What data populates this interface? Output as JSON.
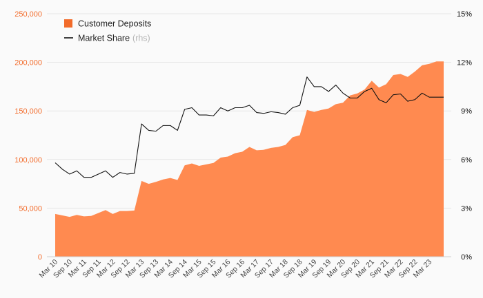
{
  "chart_data": {
    "type": "area+line",
    "title": "",
    "colors": {
      "area": "#ff8a50",
      "area_legend": "#f26b2a",
      "line": "#111111",
      "left_axis": "#f26b2a",
      "right_axis": "#111111"
    },
    "legend": {
      "position": "top-left",
      "area_label": "Customer Deposits",
      "line_label": "Market Share",
      "line_label_suffix": "(rhs)"
    },
    "left_axis": {
      "ylim": [
        0,
        250000
      ],
      "ticks": [
        0,
        50000,
        100000,
        150000,
        200000,
        250000
      ],
      "tick_labels": [
        "0",
        "50,000",
        "100,000",
        "150,000",
        "200,000",
        "250,000"
      ]
    },
    "right_axis": {
      "ylim": [
        0,
        15
      ],
      "ticks": [
        0,
        3,
        6,
        9,
        12,
        15
      ],
      "tick_labels": [
        "0%",
        "3%",
        "6%",
        "9%",
        "12%",
        "15%"
      ]
    },
    "x_tick_labels": [
      "Mar 10",
      "Sep 10",
      "Mar 11",
      "Sep 11",
      "Mar 12",
      "Sep 12",
      "Mar 13",
      "Sep 13",
      "Mar 14",
      "Sep 14",
      "Mar 15",
      "Sep 15",
      "Mar 16",
      "Sep 16",
      "Mar 17",
      "Sep 17",
      "Mar 18",
      "Sep 18",
      "Mar 19",
      "Sep 19",
      "Mar 20",
      "Sep 20",
      "Mar 21",
      "Sep 21",
      "Mar 22",
      "Sep 22",
      "Mar 23"
    ],
    "n_points": 55,
    "series": [
      {
        "name": "Customer Deposits",
        "type": "area",
        "axis": "left",
        "values": [
          44000,
          42500,
          41000,
          43000,
          41500,
          42000,
          45000,
          48000,
          44000,
          47000,
          47000,
          47500,
          78000,
          75000,
          77000,
          79500,
          81000,
          79000,
          94000,
          96000,
          93500,
          95000,
          96500,
          102000,
          103000,
          106500,
          108000,
          113000,
          109500,
          110000,
          112000,
          113000,
          115000,
          123000,
          125000,
          151000,
          149000,
          151000,
          152500,
          157000,
          158500,
          166000,
          168000,
          172000,
          181000,
          174000,
          177500,
          187000,
          188000,
          185000,
          190500,
          197000,
          198500,
          201000,
          201000
        ]
      },
      {
        "name": "Market Share",
        "type": "line",
        "axis": "right",
        "values": [
          5.8,
          5.4,
          5.1,
          5.3,
          4.9,
          4.9,
          5.1,
          5.3,
          4.9,
          5.2,
          5.1,
          5.15,
          8.2,
          7.8,
          7.75,
          8.1,
          8.1,
          7.8,
          9.1,
          9.2,
          8.75,
          8.75,
          8.7,
          9.2,
          9.0,
          9.2,
          9.2,
          9.35,
          8.9,
          8.85,
          8.95,
          8.9,
          8.8,
          9.2,
          9.35,
          11.1,
          10.5,
          10.5,
          10.2,
          10.6,
          10.1,
          9.8,
          9.8,
          10.2,
          10.4,
          9.7,
          9.5,
          10.0,
          10.05,
          9.6,
          9.7,
          10.1,
          9.85,
          9.85,
          9.85
        ]
      }
    ]
  }
}
